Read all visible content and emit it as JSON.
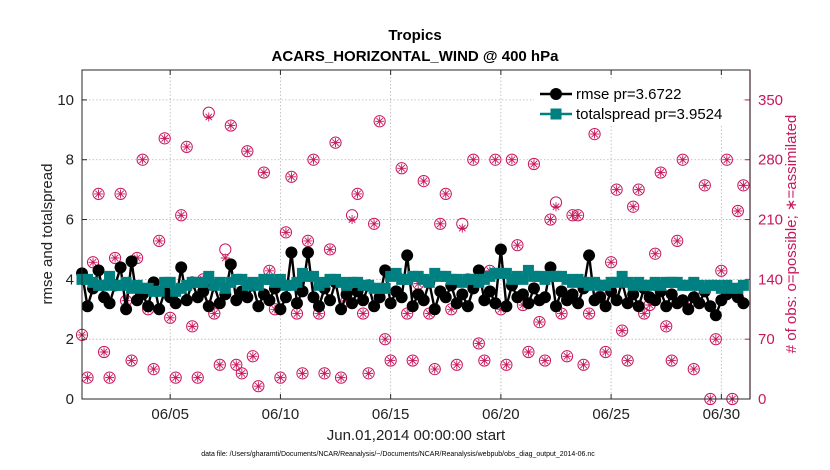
{
  "chart_data": {
    "type": "line",
    "title": "Tropics",
    "subtitle": "ACARS_HORIZONTAL_WIND @ 400 hPa",
    "xlabel": "Jun.01,2014 00:00:00 start",
    "ylabel": "rmse and totalspread",
    "y2label": "# of obs: o=possible; ∗=assimilated",
    "xlim": [
      1,
      31.3
    ],
    "ylim": [
      0,
      11
    ],
    "y2lim": [
      0,
      385
    ],
    "x_ticks": [
      5,
      10,
      15,
      20,
      25,
      30
    ],
    "x_tick_labels": [
      "06/05",
      "06/10",
      "06/15",
      "06/20",
      "06/25",
      "06/30"
    ],
    "y_ticks": [
      0,
      2,
      4,
      6,
      8,
      10
    ],
    "y_tick_labels": [
      "0",
      "2",
      "4",
      "6",
      "8",
      "10"
    ],
    "y2_ticks": [
      0,
      70,
      140,
      210,
      280,
      350
    ],
    "y2_tick_labels": [
      "0",
      "70",
      "140",
      "210",
      "280",
      "350"
    ],
    "grid": true,
    "legend_position": "top-right",
    "colors": {
      "rmse": "#000000",
      "totalspread": "#008080",
      "obs": "#c8175d"
    },
    "series": [
      {
        "name": "rmse",
        "legend": "rmse pr=3.6722",
        "marker": "circle",
        "x": [
          1.0,
          1.25,
          1.5,
          1.75,
          2.0,
          2.25,
          2.5,
          2.75,
          3.0,
          3.25,
          3.5,
          3.75,
          4.0,
          4.25,
          4.5,
          4.75,
          5.0,
          5.25,
          5.5,
          5.75,
          6.0,
          6.25,
          6.5,
          6.75,
          7.0,
          7.25,
          7.5,
          7.75,
          8.0,
          8.25,
          8.5,
          8.75,
          9.0,
          9.25,
          9.5,
          9.75,
          10.0,
          10.25,
          10.5,
          10.75,
          11.0,
          11.25,
          11.5,
          11.75,
          12.0,
          12.25,
          12.5,
          12.75,
          13.0,
          13.25,
          13.5,
          13.75,
          14.0,
          14.25,
          14.5,
          14.75,
          15.0,
          15.25,
          15.5,
          15.75,
          16.0,
          16.25,
          16.5,
          16.75,
          17.0,
          17.25,
          17.5,
          17.75,
          18.0,
          18.25,
          18.5,
          18.75,
          19.0,
          19.25,
          19.5,
          19.75,
          20.0,
          20.25,
          20.5,
          20.75,
          21.0,
          21.25,
          21.5,
          21.75,
          22.0,
          22.25,
          22.5,
          22.75,
          23.0,
          23.25,
          23.5,
          23.75,
          24.0,
          24.25,
          24.5,
          24.75,
          25.0,
          25.25,
          25.5,
          25.75,
          26.0,
          26.25,
          26.5,
          26.75,
          27.0,
          27.25,
          27.5,
          27.75,
          28.0,
          28.25,
          28.5,
          28.75,
          29.0,
          29.25,
          29.5,
          29.75,
          30.0,
          30.25,
          30.5,
          30.75,
          31.0
        ],
        "values": [
          4.2,
          3.1,
          3.7,
          4.3,
          3.4,
          3.2,
          3.8,
          4.4,
          3.0,
          4.6,
          3.3,
          3.5,
          3.1,
          3.9,
          3.0,
          3.6,
          3.4,
          3.2,
          4.4,
          3.3,
          3.9,
          3.4,
          3.6,
          3.1,
          3.8,
          3.2,
          3.5,
          4.5,
          3.3,
          3.6,
          3.4,
          3.8,
          3.1,
          3.5,
          3.3,
          3.7,
          3.0,
          3.4,
          4.9,
          3.2,
          3.6,
          4.9,
          3.4,
          3.1,
          3.7,
          3.3,
          3.9,
          3.0,
          3.5,
          3.2,
          3.6,
          3.3,
          3.8,
          3.1,
          3.4,
          4.3,
          3.2,
          3.6,
          3.4,
          4.8,
          3.1,
          3.5,
          3.3,
          3.9,
          3.0,
          3.6,
          3.4,
          3.8,
          3.2,
          3.5,
          3.1,
          3.7,
          4.3,
          3.3,
          3.6,
          3.2,
          5.0,
          3.1,
          3.8,
          3.4,
          3.5,
          3.2,
          3.7,
          3.3,
          3.4,
          4.4,
          3.1,
          3.6,
          3.3,
          3.5,
          3.2,
          3.7,
          4.8,
          3.3,
          3.4,
          3.1,
          3.6,
          3.3,
          3.9,
          3.2,
          3.5,
          3.1,
          3.7,
          3.4,
          3.3,
          3.6,
          3.1,
          3.5,
          3.2,
          3.3,
          3.0,
          3.4,
          3.2,
          3.6,
          3.1,
          2.8,
          3.3,
          3.5,
          3.6,
          3.4,
          3.2
        ]
      },
      {
        "name": "totalspread",
        "legend": "totalspread pr=3.9524",
        "marker": "square",
        "x": [
          1.0,
          1.25,
          1.5,
          1.75,
          2.0,
          2.25,
          2.5,
          2.75,
          3.0,
          3.25,
          3.5,
          3.75,
          4.0,
          4.25,
          4.5,
          4.75,
          5.0,
          5.25,
          5.5,
          5.75,
          6.0,
          6.25,
          6.5,
          6.75,
          7.0,
          7.25,
          7.5,
          7.75,
          8.0,
          8.25,
          8.5,
          8.75,
          9.0,
          9.25,
          9.5,
          9.75,
          10.0,
          10.25,
          10.5,
          10.75,
          11.0,
          11.25,
          11.5,
          11.75,
          12.0,
          12.25,
          12.5,
          12.75,
          13.0,
          13.25,
          13.5,
          13.75,
          14.0,
          14.25,
          14.5,
          14.75,
          15.0,
          15.25,
          15.5,
          15.75,
          16.0,
          16.25,
          16.5,
          16.75,
          17.0,
          17.25,
          17.5,
          17.75,
          18.0,
          18.25,
          18.5,
          18.75,
          19.0,
          19.25,
          19.5,
          19.75,
          20.0,
          20.25,
          20.5,
          20.75,
          21.0,
          21.25,
          21.5,
          21.75,
          22.0,
          22.25,
          22.5,
          22.75,
          23.0,
          23.25,
          23.5,
          23.75,
          24.0,
          24.25,
          24.5,
          24.75,
          25.0,
          25.25,
          25.5,
          25.75,
          26.0,
          26.25,
          26.5,
          26.75,
          27.0,
          27.25,
          27.5,
          27.75,
          28.0,
          28.25,
          28.5,
          28.75,
          29.0,
          29.25,
          29.5,
          29.75,
          30.0,
          30.25,
          30.5,
          30.75,
          31.0
        ],
        "values": [
          4.0,
          4.0,
          3.9,
          3.8,
          3.8,
          4.1,
          3.8,
          3.8,
          3.9,
          3.7,
          3.8,
          3.7,
          3.7,
          3.6,
          3.6,
          3.9,
          3.9,
          3.6,
          3.7,
          3.8,
          3.9,
          3.9,
          3.9,
          4.1,
          3.8,
          3.9,
          3.7,
          3.9,
          4.0,
          4.0,
          3.8,
          3.9,
          3.8,
          4.0,
          4.0,
          3.9,
          4.0,
          3.8,
          3.8,
          3.9,
          4.2,
          4.1,
          4.1,
          3.8,
          3.9,
          4.0,
          4.0,
          3.9,
          3.8,
          3.9,
          3.9,
          3.8,
          3.8,
          3.7,
          3.7,
          3.7,
          4.1,
          4.2,
          4.0,
          4.0,
          4.1,
          4.1,
          4.0,
          3.9,
          4.2,
          4.1,
          4.1,
          4.0,
          4.0,
          3.9,
          4.0,
          4.0,
          3.9,
          4.0,
          4.1,
          4.2,
          4.2,
          4.2,
          4.0,
          4.1,
          4.0,
          4.3,
          4.1,
          4.1,
          4.0,
          4.1,
          4.1,
          4.1,
          4.0,
          3.9,
          4.0,
          3.9,
          3.8,
          3.9,
          3.8,
          3.8,
          3.9,
          3.9,
          4.1,
          3.9,
          3.8,
          3.9,
          3.8,
          3.8,
          3.9,
          3.8,
          3.9,
          3.9,
          3.9,
          3.8,
          3.8,
          3.9,
          3.8,
          3.7,
          3.8,
          3.8,
          3.7,
          3.8,
          3.7,
          3.7,
          3.8
        ]
      },
      {
        "name": "obs_possible",
        "axis": "right",
        "marker": "open-circle",
        "x": [
          1.0,
          1.25,
          1.5,
          1.75,
          2.0,
          2.25,
          2.5,
          2.75,
          3.0,
          3.25,
          3.5,
          3.75,
          4.0,
          4.25,
          4.5,
          4.75,
          5.0,
          5.25,
          5.5,
          5.75,
          6.0,
          6.25,
          6.5,
          6.75,
          7.0,
          7.25,
          7.5,
          7.75,
          8.0,
          8.25,
          8.5,
          8.75,
          9.0,
          9.25,
          9.5,
          9.75,
          10.0,
          10.25,
          10.5,
          10.75,
          11.0,
          11.25,
          11.5,
          11.75,
          12.0,
          12.25,
          12.5,
          12.75,
          13.0,
          13.25,
          13.5,
          13.75,
          14.0,
          14.25,
          14.5,
          14.75,
          15.0,
          15.25,
          15.5,
          15.75,
          16.0,
          16.25,
          16.5,
          16.75,
          17.0,
          17.25,
          17.5,
          17.75,
          18.0,
          18.25,
          18.5,
          18.75,
          19.0,
          19.25,
          19.5,
          19.75,
          20.0,
          20.25,
          20.5,
          20.75,
          21.0,
          21.25,
          21.5,
          21.75,
          22.0,
          22.25,
          22.5,
          22.75,
          23.0,
          23.25,
          23.5,
          23.75,
          24.0,
          24.25,
          24.5,
          24.75,
          25.0,
          25.25,
          25.5,
          25.75,
          26.0,
          26.25,
          26.5,
          26.75,
          27.0,
          27.25,
          27.5,
          27.75,
          28.0,
          28.25,
          28.5,
          28.75,
          29.0,
          29.25,
          29.5,
          29.75,
          30.0,
          30.25,
          30.5,
          30.75,
          31.0
        ],
        "values": [
          75,
          25,
          160,
          240,
          55,
          25,
          165,
          240,
          115,
          45,
          165,
          280,
          105,
          35,
          185,
          305,
          95,
          25,
          215,
          295,
          85,
          25,
          140,
          335,
          100,
          40,
          175,
          320,
          40,
          30,
          290,
          50,
          15,
          265,
          150,
          105,
          25,
          195,
          260,
          100,
          30,
          185,
          280,
          100,
          30,
          175,
          300,
          25,
          115,
          215,
          240,
          100,
          30,
          205,
          325,
          70,
          45,
          145,
          270,
          100,
          45,
          135,
          255,
          100,
          35,
          205,
          240,
          105,
          40,
          205,
          140,
          280,
          65,
          45,
          150,
          280,
          105,
          40,
          280,
          180,
          110,
          55,
          275,
          90,
          45,
          210,
          230,
          100,
          50,
          215,
          215,
          40,
          100,
          310,
          120,
          55,
          160,
          245,
          80,
          45,
          225,
          245,
          100,
          110,
          170,
          265,
          85,
          45,
          185,
          280,
          110,
          35,
          130,
          250,
          0,
          70,
          150,
          280,
          0,
          220,
          250
        ]
      },
      {
        "name": "obs_assimilated",
        "axis": "right",
        "marker": "asterisk",
        "x": [
          1.0,
          1.25,
          1.5,
          1.75,
          2.0,
          2.25,
          2.5,
          2.75,
          3.0,
          3.25,
          3.5,
          3.75,
          4.0,
          4.25,
          4.5,
          4.75,
          5.0,
          5.25,
          5.5,
          5.75,
          6.0,
          6.25,
          6.5,
          6.75,
          7.0,
          7.25,
          7.5,
          7.75,
          8.0,
          8.25,
          8.5,
          8.75,
          9.0,
          9.25,
          9.5,
          9.75,
          10.0,
          10.25,
          10.5,
          10.75,
          11.0,
          11.25,
          11.5,
          11.75,
          12.0,
          12.25,
          12.5,
          12.75,
          13.0,
          13.25,
          13.5,
          13.75,
          14.0,
          14.25,
          14.5,
          14.75,
          15.0,
          15.25,
          15.5,
          15.75,
          16.0,
          16.25,
          16.5,
          16.75,
          17.0,
          17.25,
          17.5,
          17.75,
          18.0,
          18.25,
          18.5,
          18.75,
          19.0,
          19.25,
          19.5,
          19.75,
          20.0,
          20.25,
          20.5,
          20.75,
          21.0,
          21.25,
          21.5,
          21.75,
          22.0,
          22.25,
          22.5,
          22.75,
          23.0,
          23.25,
          23.5,
          23.75,
          24.0,
          24.25,
          24.5,
          24.75,
          25.0,
          25.25,
          25.5,
          25.75,
          26.0,
          26.25,
          26.5,
          26.75,
          27.0,
          27.25,
          27.5,
          27.75,
          28.0,
          28.25,
          28.5,
          28.75,
          29.0,
          29.25,
          29.5,
          29.75,
          30.0,
          30.25,
          30.5,
          30.75,
          31.0
        ],
        "values": [
          75,
          25,
          160,
          240,
          55,
          25,
          165,
          240,
          115,
          45,
          165,
          280,
          105,
          35,
          185,
          305,
          95,
          25,
          215,
          295,
          85,
          25,
          140,
          330,
          100,
          40,
          165,
          320,
          40,
          30,
          290,
          50,
          15,
          265,
          150,
          105,
          25,
          195,
          260,
          100,
          30,
          185,
          280,
          100,
          30,
          175,
          300,
          25,
          115,
          210,
          240,
          100,
          30,
          205,
          325,
          70,
          45,
          145,
          270,
          100,
          45,
          135,
          255,
          100,
          35,
          205,
          240,
          105,
          40,
          200,
          140,
          280,
          65,
          45,
          150,
          280,
          105,
          40,
          280,
          180,
          110,
          55,
          275,
          90,
          45,
          210,
          225,
          100,
          50,
          215,
          215,
          40,
          100,
          310,
          120,
          55,
          160,
          245,
          80,
          45,
          225,
          245,
          100,
          110,
          170,
          265,
          85,
          45,
          185,
          280,
          110,
          35,
          130,
          250,
          0,
          70,
          150,
          280,
          0,
          220,
          250
        ]
      }
    ],
    "footnote": "data file: /Users/gharamti/Documents/NCAR/Reanalysis/~/Documents/NCAR/Reanalysis/webpub/obs_diag_output_2014-06.nc"
  }
}
